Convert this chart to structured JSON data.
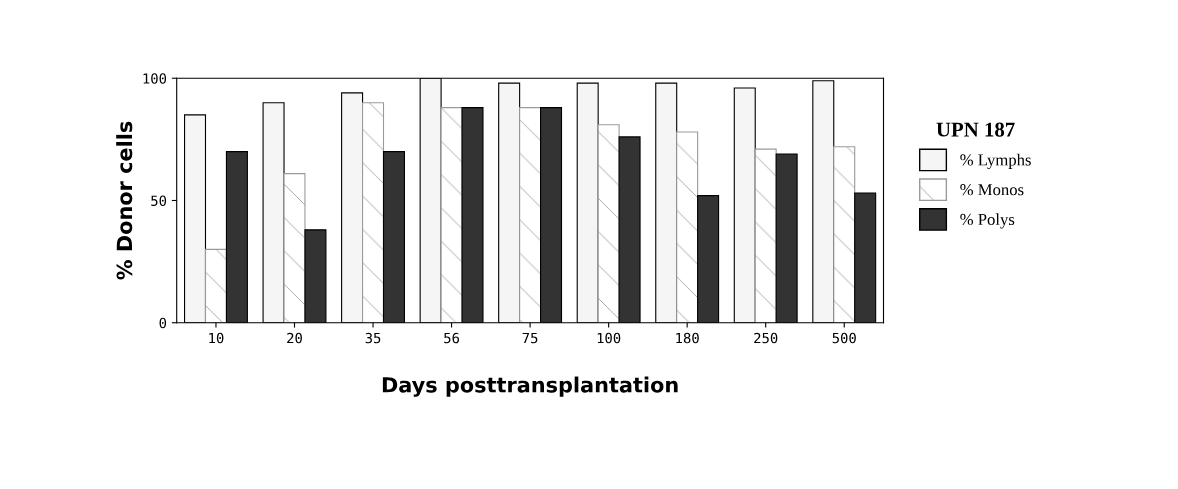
{
  "chart_data": {
    "type": "bar",
    "xlabel": "Days posttransplantation",
    "ylabel": "% Donor cells",
    "legend_title": "UPN 187",
    "categories": [
      "10",
      "20",
      "35",
      "56",
      "75",
      "100",
      "180",
      "250",
      "500"
    ],
    "series": [
      {
        "name": "% Lymphs",
        "color": "#f5f5f5",
        "values": [
          85,
          90,
          94,
          100,
          98,
          98,
          98,
          96,
          99
        ]
      },
      {
        "name": "% Monos",
        "color": "#9a9a9a",
        "values": [
          30,
          61,
          90,
          88,
          88,
          81,
          78,
          71,
          72
        ]
      },
      {
        "name": "% Polys",
        "color": "#333333",
        "values": [
          70,
          38,
          70,
          88,
          88,
          76,
          52,
          69,
          53
        ]
      }
    ],
    "ylim": [
      0,
      100
    ],
    "yticks": [
      0,
      50,
      100
    ],
    "grid": false,
    "legend": "right"
  }
}
